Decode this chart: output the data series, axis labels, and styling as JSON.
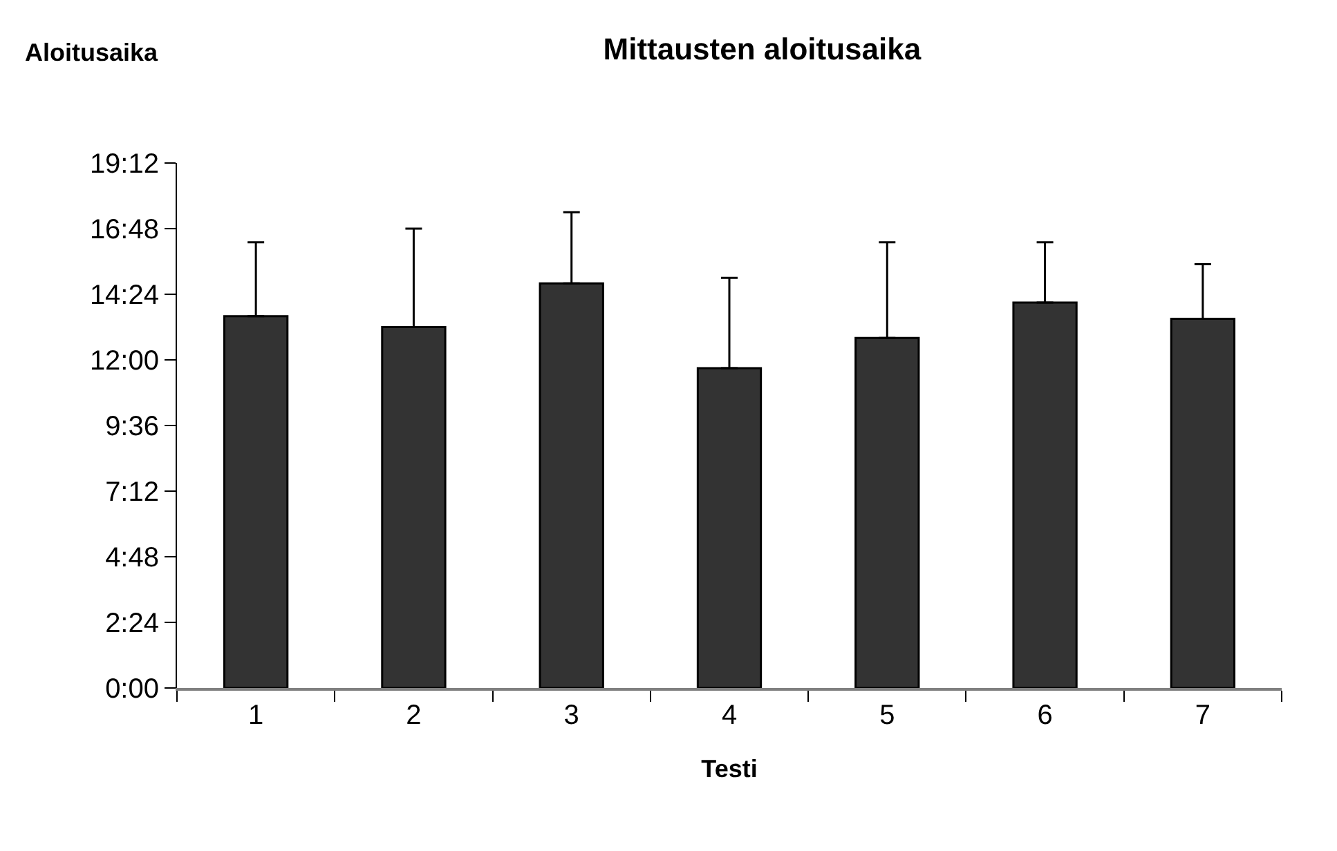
{
  "chart_data": {
    "type": "bar",
    "title": "Mittausten aloitusaika",
    "xlabel": "Testi",
    "ylabel": "Aloitusaika",
    "categories": [
      "1",
      "2",
      "3",
      "4",
      "5",
      "6",
      "7"
    ],
    "values": [
      13.6,
      13.2,
      14.8,
      11.7,
      12.8,
      14.1,
      13.5
    ],
    "errors": [
      [
        13.6,
        16.3
      ],
      [
        13.2,
        16.8
      ],
      [
        14.8,
        17.4
      ],
      [
        11.7,
        15.0
      ],
      [
        12.8,
        16.3
      ],
      [
        14.1,
        16.3
      ],
      [
        13.5,
        15.5
      ]
    ],
    "color": "#333333",
    "ylim": [
      0,
      19.2
    ],
    "yticks": [
      {
        "value": 0,
        "label": "0:00"
      },
      {
        "value": 2.4,
        "label": "2:24"
      },
      {
        "value": 4.8,
        "label": "4:48"
      },
      {
        "value": 7.2,
        "label": "7:12"
      },
      {
        "value": 9.6,
        "label": "9:36"
      },
      {
        "value": 12,
        "label": "12:00"
      },
      {
        "value": 14.4,
        "label": "14:24"
      },
      {
        "value": 16.8,
        "label": "16:48"
      },
      {
        "value": 19.2,
        "label": "19:12"
      }
    ],
    "legend": false
  }
}
